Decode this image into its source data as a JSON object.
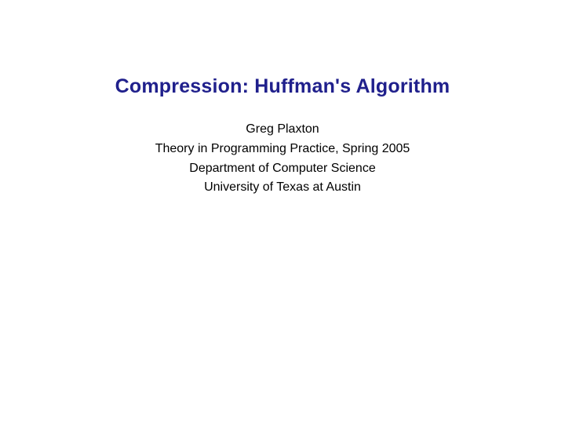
{
  "slide": {
    "title": "Compression: Huffman's Algorithm",
    "title_color": "#20208c",
    "title_fontsize": 25,
    "subtitle_lines": [
      "Greg Plaxton",
      "Theory in Programming Practice, Spring 2005",
      "Department of Computer Science",
      "University of Texas at Austin"
    ],
    "subtitle_color": "#000000",
    "subtitle_fontsize": 16,
    "background_color": "#ffffff"
  }
}
